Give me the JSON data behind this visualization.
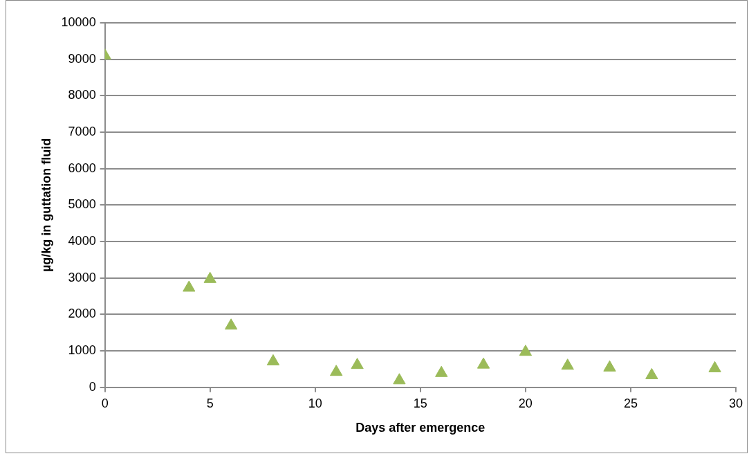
{
  "chart_data": {
    "type": "scatter",
    "xlabel": "Days after emergence",
    "ylabel": "µg/kg in guttation fluid",
    "x": [
      0,
      4,
      5,
      6,
      8,
      11,
      12,
      14,
      16,
      18,
      20,
      22,
      24,
      26,
      29
    ],
    "values": [
      9100,
      2730,
      2970,
      1690,
      710,
      420,
      610,
      190,
      390,
      620,
      970,
      590,
      540,
      330,
      520
    ],
    "color": "#9bbb59",
    "marker": "triangle",
    "xlim": [
      0,
      30
    ],
    "xticks": [
      0,
      5,
      10,
      15,
      20,
      25,
      30
    ],
    "ylim": [
      0,
      10000
    ],
    "yticks": [
      0,
      1000,
      2000,
      3000,
      4000,
      5000,
      6000,
      7000,
      8000,
      9000,
      10000
    ],
    "grid": "y",
    "legend": false
  }
}
